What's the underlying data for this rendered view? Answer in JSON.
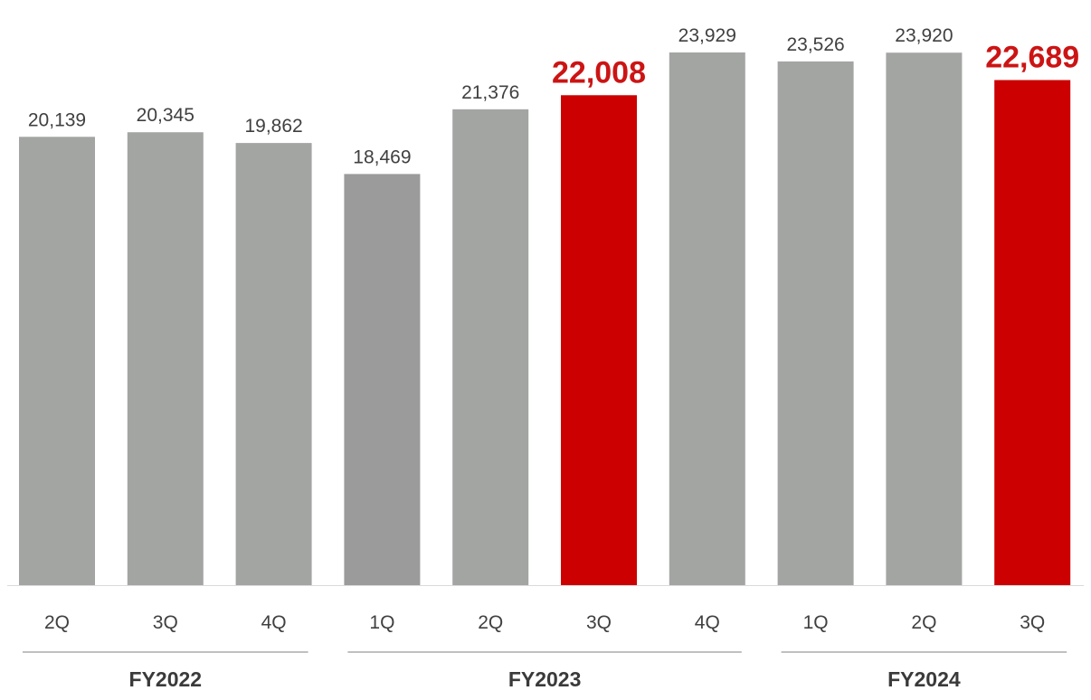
{
  "chart_data": {
    "type": "bar",
    "categories": [
      "2Q",
      "3Q",
      "4Q",
      "1Q",
      "2Q",
      "3Q",
      "4Q",
      "1Q",
      "2Q",
      "3Q"
    ],
    "values": [
      20139,
      20345,
      19862,
      18469,
      21376,
      22008,
      23929,
      23526,
      23920,
      22689
    ],
    "value_labels": [
      "20,139",
      "20,345",
      "19,862",
      "18,469",
      "21,376",
      "22,008",
      "23,929",
      "23,526",
      "23,920",
      "22,689"
    ],
    "highlighted": [
      false,
      false,
      false,
      false,
      false,
      true,
      false,
      false,
      false,
      true
    ],
    "groups": [
      {
        "label": "FY2022",
        "start": 0,
        "end": 2
      },
      {
        "label": "FY2023",
        "start": 3,
        "end": 6
      },
      {
        "label": "FY2024",
        "start": 7,
        "end": 9
      }
    ],
    "ylim": [
      0,
      24500
    ],
    "grid": false,
    "title": "",
    "xlabel": "",
    "ylabel": ""
  },
  "colors": {
    "bar_default": "#a3a5a3",
    "bar_darker": "#9b9b9b",
    "bar_highlight": "#cc0000",
    "label_default": "#404040",
    "label_highlight": "#cc1414",
    "axis_line": "#dadada",
    "group_line": "#9a9a9a",
    "group_text": "#3a3a3a"
  }
}
